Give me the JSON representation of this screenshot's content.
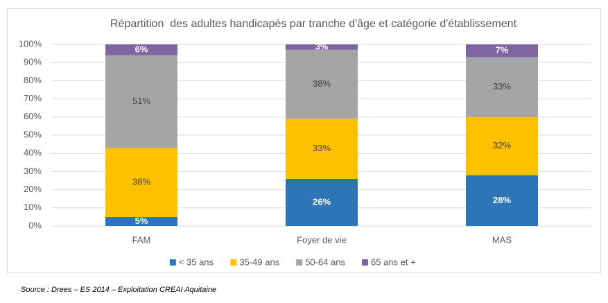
{
  "chart_data": {
    "type": "stacked_bar",
    "title": "Répartition  des adultes handicapés par tranche d'âge et catégorie d'établissement",
    "categories": [
      "FAM",
      "Foyer de vie",
      "MAS"
    ],
    "series": [
      {
        "name": "< 35 ans",
        "color": "#2e75b6",
        "label_color": "#ffffff",
        "values": [
          5,
          26,
          28
        ],
        "value_labels": [
          "5%",
          "26%",
          "28%"
        ]
      },
      {
        "name": "35-49 ans",
        "color": "#ffc000",
        "label_color": "#404040",
        "values": [
          38,
          33,
          32
        ],
        "value_labels": [
          "38%",
          "33%",
          "32%"
        ]
      },
      {
        "name": "50-64 ans",
        "color": "#a5a5a5",
        "label_color": "#404040",
        "values": [
          51,
          38,
          33
        ],
        "value_labels": [
          "51%",
          "38%",
          "33%"
        ]
      },
      {
        "name": "65 ans et +",
        "color": "#8064a2",
        "label_color": "#ffffff",
        "values": [
          6,
          3,
          7
        ],
        "value_labels": [
          "6%",
          "3%",
          "7%"
        ]
      }
    ],
    "ylim": [
      0,
      100
    ],
    "yticks": [
      {
        "value": 0,
        "label": "0%"
      },
      {
        "value": 10,
        "label": "10%"
      },
      {
        "value": 20,
        "label": "20%"
      },
      {
        "value": 30,
        "label": "30%"
      },
      {
        "value": 40,
        "label": "40%"
      },
      {
        "value": 50,
        "label": "50%"
      },
      {
        "value": 60,
        "label": "60%"
      },
      {
        "value": 70,
        "label": "70%"
      },
      {
        "value": 80,
        "label": "80%"
      },
      {
        "value": 90,
        "label": "90%"
      },
      {
        "value": 100,
        "label": "100%"
      }
    ],
    "grid": true,
    "legend": "bottom",
    "source": "Source : Drees – ES 2014 – Exploitation CREAI Aquitaine"
  }
}
